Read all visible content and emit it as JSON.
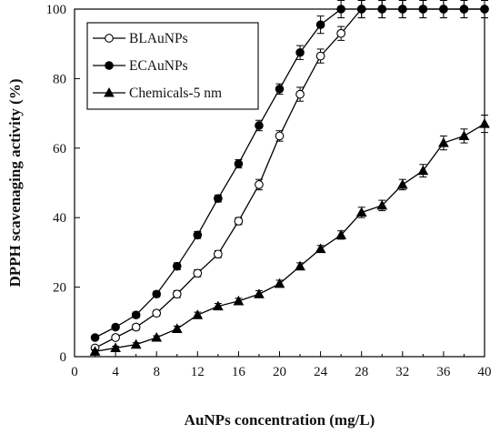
{
  "chart_data": {
    "type": "scatter",
    "xlabel": "AuNPs concentration (mg/L)",
    "ylabel": "DPPH scavenaging activity (%)",
    "xlim": [
      0,
      40
    ],
    "ylim": [
      0,
      100
    ],
    "xticks": [
      0,
      4,
      8,
      12,
      16,
      20,
      24,
      28,
      32,
      36,
      40
    ],
    "yticks": [
      0,
      20,
      40,
      60,
      80,
      100
    ],
    "grid": false,
    "legend_position": "top-left",
    "series": [
      {
        "name": "BLAuNPs",
        "marker": "circle-open",
        "color": "#000000",
        "x": [
          2,
          4,
          6,
          8,
          10,
          12,
          14,
          16,
          18,
          20,
          22,
          24,
          26,
          28,
          30,
          32,
          34,
          36,
          38,
          40
        ],
        "y": [
          2.5,
          5.5,
          8.5,
          12.5,
          18,
          24,
          29.5,
          39,
          49.5,
          63.5,
          75.5,
          86.5,
          93,
          100,
          100,
          100,
          100,
          100,
          100,
          100
        ],
        "err": [
          0.5,
          0.5,
          0.8,
          0.8,
          1,
          1,
          1,
          1,
          1.5,
          1.5,
          2,
          2,
          2,
          2.5,
          2.5,
          2.5,
          2.5,
          2.5,
          2.5,
          2.5
        ]
      },
      {
        "name": "ECAuNPs",
        "marker": "circle-filled",
        "color": "#000000",
        "x": [
          2,
          4,
          6,
          8,
          10,
          12,
          14,
          16,
          18,
          20,
          22,
          24,
          26,
          28,
          30,
          32,
          34,
          36,
          38,
          40
        ],
        "y": [
          5.5,
          8.5,
          12,
          18,
          26,
          35,
          45.5,
          55.5,
          66.5,
          77,
          87.5,
          95.5,
          100,
          100,
          100,
          100,
          100,
          100,
          100,
          100
        ],
        "err": [
          0.5,
          0.5,
          0.8,
          0.8,
          1,
          1,
          1,
          1.2,
          1.5,
          1.5,
          2,
          2.5,
          2.5,
          2.5,
          2.5,
          2.5,
          2.5,
          2.5,
          2.5,
          2.5
        ]
      },
      {
        "name": "Chemicals-5 nm",
        "marker": "triangle-filled",
        "color": "#000000",
        "x": [
          2,
          4,
          6,
          8,
          10,
          12,
          14,
          16,
          18,
          20,
          22,
          24,
          26,
          28,
          30,
          32,
          34,
          36,
          38,
          40
        ],
        "y": [
          1.5,
          2.5,
          3.5,
          5.5,
          8,
          12,
          14.5,
          16,
          18,
          21,
          26,
          31,
          35,
          41.5,
          43.5,
          49.5,
          53.5,
          61.5,
          63.5,
          67
        ],
        "err": [
          0.5,
          0.5,
          0.5,
          0.5,
          0.8,
          0.8,
          0.8,
          0.8,
          1,
          1,
          1,
          1,
          1.2,
          1.5,
          1.5,
          1.5,
          1.8,
          2,
          2,
          2.5
        ]
      }
    ]
  }
}
